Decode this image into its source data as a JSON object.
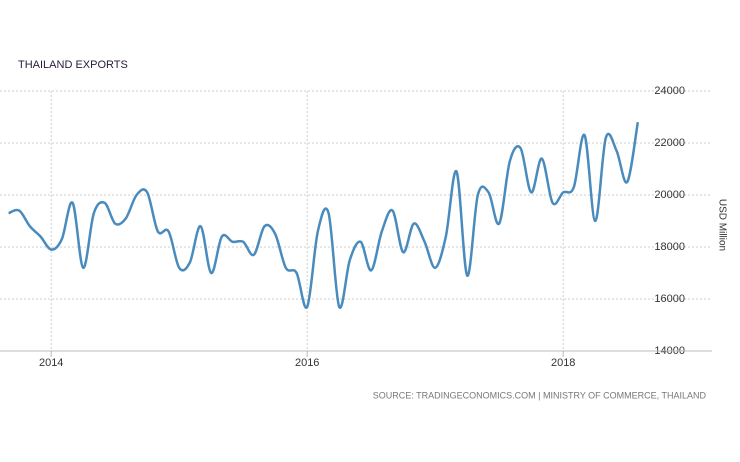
{
  "chart_data": {
    "type": "line",
    "title": "THAILAND EXPORTS",
    "y_label": "USD Million",
    "source": "SOURCE: TRADINGECONOMICS.COM | MINISTRY OF COMMERCE, THAILAND",
    "x": [
      2013.667,
      2013.75,
      2013.833,
      2013.917,
      2014.0,
      2014.083,
      2014.167,
      2014.25,
      2014.333,
      2014.417,
      2014.5,
      2014.583,
      2014.667,
      2014.75,
      2014.833,
      2014.917,
      2015.0,
      2015.083,
      2015.167,
      2015.25,
      2015.333,
      2015.417,
      2015.5,
      2015.583,
      2015.667,
      2015.75,
      2015.833,
      2015.917,
      2016.0,
      2016.083,
      2016.167,
      2016.25,
      2016.333,
      2016.417,
      2016.5,
      2016.583,
      2016.667,
      2016.75,
      2016.833,
      2016.917,
      2017.0,
      2017.083,
      2017.167,
      2017.25,
      2017.333,
      2017.417,
      2017.5,
      2017.583,
      2017.667,
      2017.75,
      2017.833,
      2017.917,
      2018.0,
      2018.083,
      2018.167,
      2018.25,
      2018.333,
      2018.417,
      2018.5,
      2018.583
    ],
    "series": [
      {
        "name": "Exports",
        "color": "#4a8bbd",
        "values": [
          19300,
          19400,
          18800,
          18400,
          17900,
          18300,
          19700,
          17200,
          19300,
          19700,
          18900,
          19100,
          20000,
          20100,
          18600,
          18600,
          17200,
          17400,
          18800,
          17000,
          18400,
          18200,
          18200,
          17700,
          18800,
          18500,
          17200,
          17000,
          15700,
          18600,
          19300,
          15700,
          17500,
          18200,
          17100,
          18600,
          19400,
          17800,
          18900,
          18200,
          17200,
          18400,
          20900,
          16900,
          20000,
          20100,
          18900,
          21300,
          21800,
          20100,
          21400,
          19700,
          20100,
          20300,
          22300,
          19000,
          22200,
          21700,
          20500,
          22800
        ]
      }
    ],
    "xlim": [
      2013.6,
      2018.6
    ],
    "xticks": [
      2014,
      2016,
      2018
    ],
    "ylim": [
      14000,
      24000
    ],
    "yticks": [
      14000,
      16000,
      18000,
      20000,
      22000,
      24000
    ],
    "grid": true
  }
}
